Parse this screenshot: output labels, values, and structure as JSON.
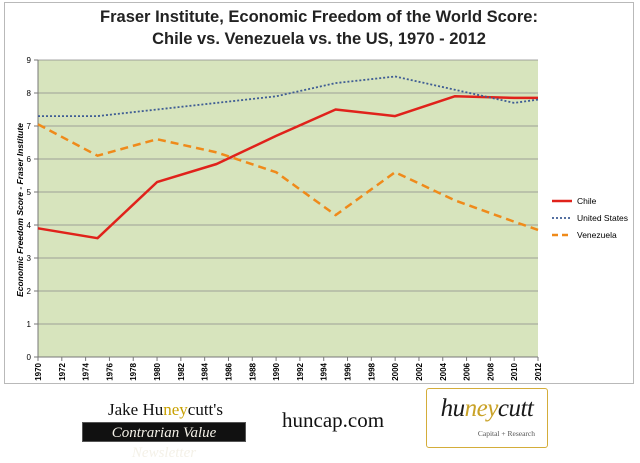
{
  "chart_data": {
    "type": "line",
    "title_line1": "Fraser Institute, Economic Freedom of the World Score:",
    "title_line2": "Chile vs. Venezuela vs. the US, 1970 - 2012",
    "ylabel": "Economic Freedom Score - Fraser Institute",
    "xlabel": "",
    "ylim": [
      0,
      9
    ],
    "xlim": [
      1970,
      2012
    ],
    "yticks": [
      "0",
      "1",
      "2",
      "3",
      "4",
      "5",
      "6",
      "7",
      "8",
      "9"
    ],
    "xticks": [
      "1970",
      "1972",
      "1974",
      "1976",
      "1978",
      "1980",
      "1982",
      "1984",
      "1986",
      "1988",
      "1990",
      "1992",
      "1994",
      "1996",
      "1998",
      "2000",
      "2002",
      "2004",
      "2006",
      "2008",
      "2010",
      "2012"
    ],
    "grid": "horizontal",
    "legend_position": "right",
    "background_color": "#d7e4bd",
    "series": [
      {
        "name": "Chile",
        "color": "#e0221b",
        "style": "solid",
        "x": [
          1970,
          1975,
          1980,
          1985,
          1990,
          1995,
          2000,
          2005,
          2010,
          2012
        ],
        "y": [
          3.9,
          3.6,
          5.3,
          5.85,
          6.7,
          7.5,
          7.3,
          7.9,
          7.85,
          7.85
        ]
      },
      {
        "name": "United States",
        "color": "#3f5d94",
        "style": "dotted",
        "x": [
          1970,
          1975,
          1980,
          1985,
          1990,
          1995,
          2000,
          2005,
          2010,
          2012
        ],
        "y": [
          7.3,
          7.3,
          7.5,
          7.7,
          7.9,
          8.3,
          8.5,
          8.1,
          7.7,
          7.8
        ]
      },
      {
        "name": "Venezuela",
        "color": "#ef8a1a",
        "style": "dashed",
        "x": [
          1970,
          1975,
          1980,
          1985,
          1990,
          1995,
          2000,
          2005,
          2010,
          2012
        ],
        "y": [
          7.05,
          6.1,
          6.6,
          6.2,
          5.6,
          4.3,
          5.6,
          4.75,
          4.1,
          3.85
        ]
      }
    ]
  },
  "footer": {
    "author_prefix": "Jake Hu",
    "author_accent": "ney",
    "author_suffix": "cutt's",
    "newsletter": "Contrarian Value Newsletter",
    "website": "huncap.com",
    "logo_prefix": "hu",
    "logo_accent": "ney",
    "logo_suffix": "cutt",
    "logo_sub": "Capital + Research"
  }
}
